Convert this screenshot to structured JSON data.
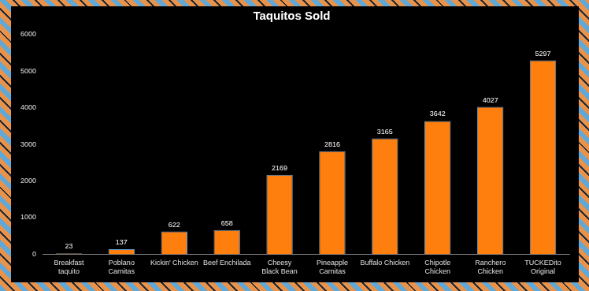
{
  "chart_data": {
    "type": "bar",
    "title": "Taquitos Sold",
    "categories": [
      "Breakfast taquito",
      "Poblano Carnitas",
      "Kickin' Chicken",
      "Beef Enchilada",
      "Cheesy Black Bean",
      "Pineapple Carnitas",
      "Buffalo Chicken",
      "Chipotle Chicken",
      "Ranchero Chicken",
      "TUCKEDito Original"
    ],
    "values": [
      23,
      137,
      622,
      658,
      2169,
      2816,
      3165,
      3642,
      4027,
      5297
    ],
    "color": "#ff7f0e",
    "ylim": [
      0,
      6000
    ],
    "yticks": [
      0,
      1000,
      2000,
      3000,
      4000,
      5000,
      6000
    ],
    "grid": false,
    "data_labels": true
  }
}
